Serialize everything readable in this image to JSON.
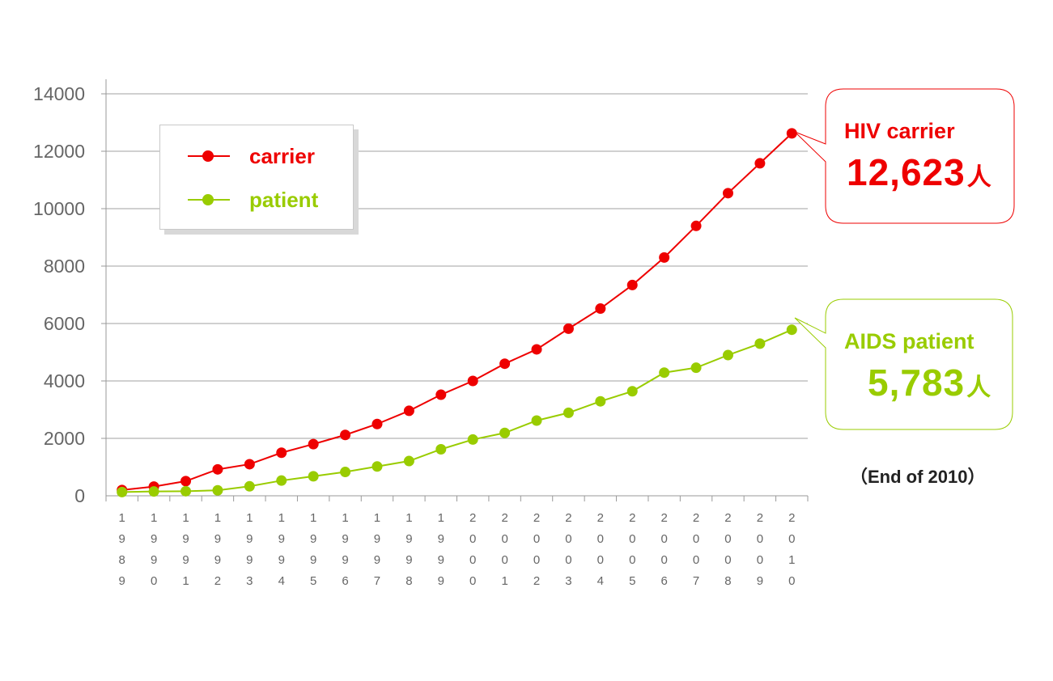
{
  "colors": {
    "carrier": "#ee0000",
    "patient": "#99cc00",
    "grid": "#a0a0a0",
    "axis_text": "#666666"
  },
  "legend": {
    "placement": "top-left",
    "items": [
      {
        "label": "carrier",
        "color": "#ee0000"
      },
      {
        "label": "patient",
        "color": "#99cc00"
      }
    ]
  },
  "callouts": {
    "carrier": {
      "title": "HIV carrier",
      "value": "12,623",
      "unit": "人"
    },
    "patient": {
      "title": "AIDS patient",
      "value": "5,783",
      "unit": "人"
    }
  },
  "footnote": "（End of 2010）",
  "chart_data": {
    "type": "line",
    "title": "",
    "xlabel": "",
    "ylabel": "",
    "ylim": [
      0,
      14000
    ],
    "yticks": [
      0,
      2000,
      4000,
      6000,
      8000,
      10000,
      12000,
      14000
    ],
    "grid": true,
    "categories": [
      "1989",
      "1990",
      "1991",
      "1992",
      "1993",
      "1994",
      "1995",
      "1996",
      "1997",
      "1998",
      "1999",
      "2000",
      "2001",
      "2002",
      "2003",
      "2004",
      "2005",
      "2006",
      "2007",
      "2008",
      "2009",
      "2010"
    ],
    "series": [
      {
        "name": "carrier",
        "color": "#ee0000",
        "values": [
          200,
          320,
          510,
          920,
          1100,
          1500,
          1800,
          2120,
          2500,
          2960,
          3520,
          4000,
          4600,
          5100,
          5820,
          6520,
          7340,
          8300,
          9400,
          10540,
          11580,
          12623
        ]
      },
      {
        "name": "patient",
        "color": "#99cc00",
        "values": [
          130,
          150,
          160,
          190,
          330,
          530,
          680,
          830,
          1020,
          1210,
          1620,
          1960,
          2190,
          2620,
          2890,
          3290,
          3640,
          4290,
          4460,
          4900,
          5300,
          5783
        ]
      }
    ]
  }
}
